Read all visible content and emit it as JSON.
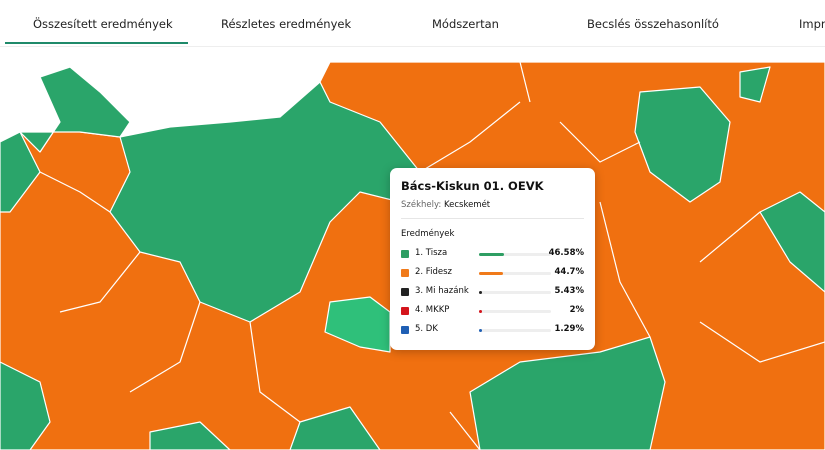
{
  "tabs": [
    "Összesített eredmények",
    "Részletes eredmények",
    "Módszertan",
    "Becslés összehasonlító",
    "Impre"
  ],
  "tooltip": {
    "title": "Bács-Kiskun 01. OEVK",
    "seat_label": "Székhely:",
    "seat": "Kecskemét",
    "results_heading": "Eredmények",
    "results": [
      {
        "name": "1. Tisza",
        "color": "#2e9e63",
        "share": 46.58,
        "share_label": "46.58%"
      },
      {
        "name": "2. Fidesz",
        "color": "#f07a1a",
        "share": 44.7,
        "share_label": "44.7%"
      },
      {
        "name": "3. Mi hazánk",
        "color": "#222222",
        "share": 5.43,
        "share_label": "5.43%"
      },
      {
        "name": "4. MKKP",
        "color": "#d4141c",
        "share": 2,
        "share_label": "2%"
      },
      {
        "name": "5. DK",
        "color": "#1f5fb4",
        "share": 1.29,
        "share_label": "1.29%"
      }
    ]
  }
}
